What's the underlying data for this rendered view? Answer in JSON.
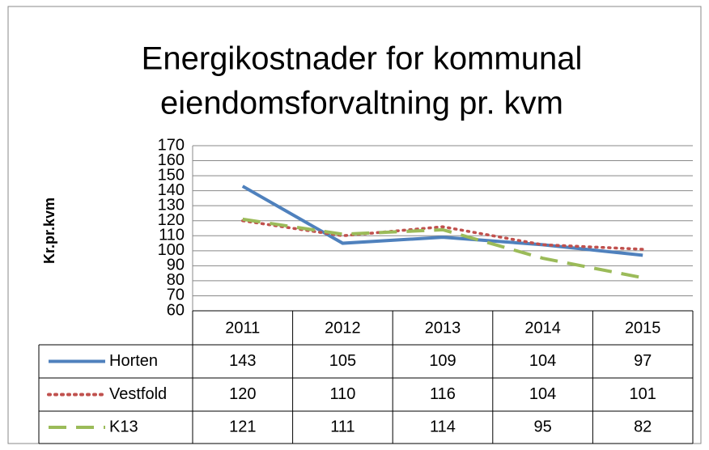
{
  "chart_data": {
    "type": "line",
    "title": [
      "Energikostnader for kommunal",
      "eiendomsforvaltning pr. kvm"
    ],
    "y_axis_label": "Kr.pr.kvm",
    "categories": [
      "2011",
      "2012",
      "2013",
      "2014",
      "2015"
    ],
    "series": [
      {
        "name": "Horten",
        "color": "#4f81bd",
        "style": "solid",
        "values": [
          143,
          105,
          109,
          104,
          97
        ]
      },
      {
        "name": "Vestfold",
        "color": "#c0504d",
        "style": "dotted",
        "values": [
          120,
          110,
          116,
          104,
          101
        ]
      },
      {
        "name": "K13",
        "color": "#9bbb59",
        "style": "dashed",
        "values": [
          121,
          111,
          114,
          95,
          82
        ]
      }
    ],
    "ylim": [
      60,
      170
    ],
    "yticks": [
      60,
      70,
      80,
      90,
      100,
      110,
      120,
      130,
      140,
      150,
      160,
      170
    ],
    "grid": true,
    "data_table": true
  }
}
